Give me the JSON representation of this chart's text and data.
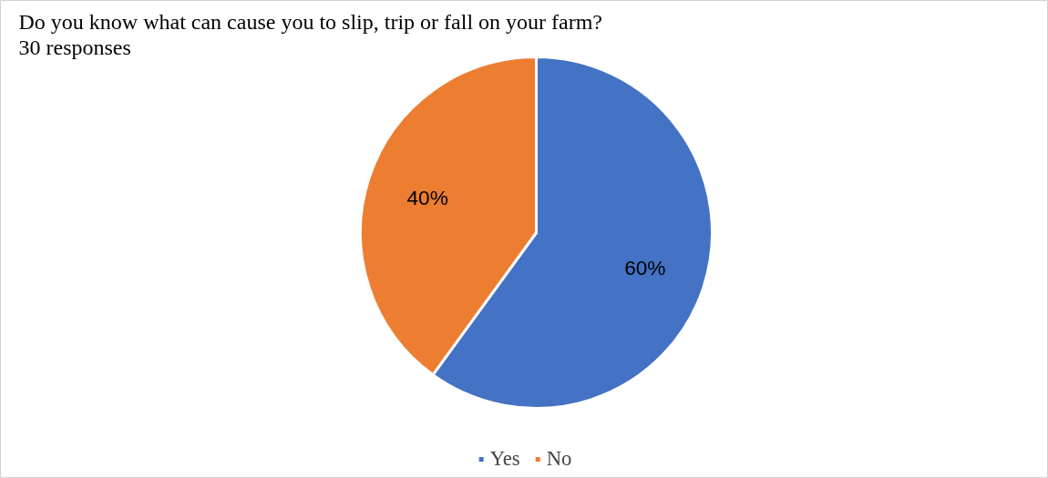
{
  "chart_data": {
    "type": "pie",
    "title": "Do you know what can cause you to slip, trip or fall on your farm?",
    "subtitle": "30 responses",
    "categories": [
      "Yes",
      "No"
    ],
    "values": [
      60,
      40
    ],
    "colors": [
      "#4472c4",
      "#ed7d31"
    ],
    "value_labels": [
      "60%",
      "40%"
    ],
    "legend": "bottom"
  }
}
